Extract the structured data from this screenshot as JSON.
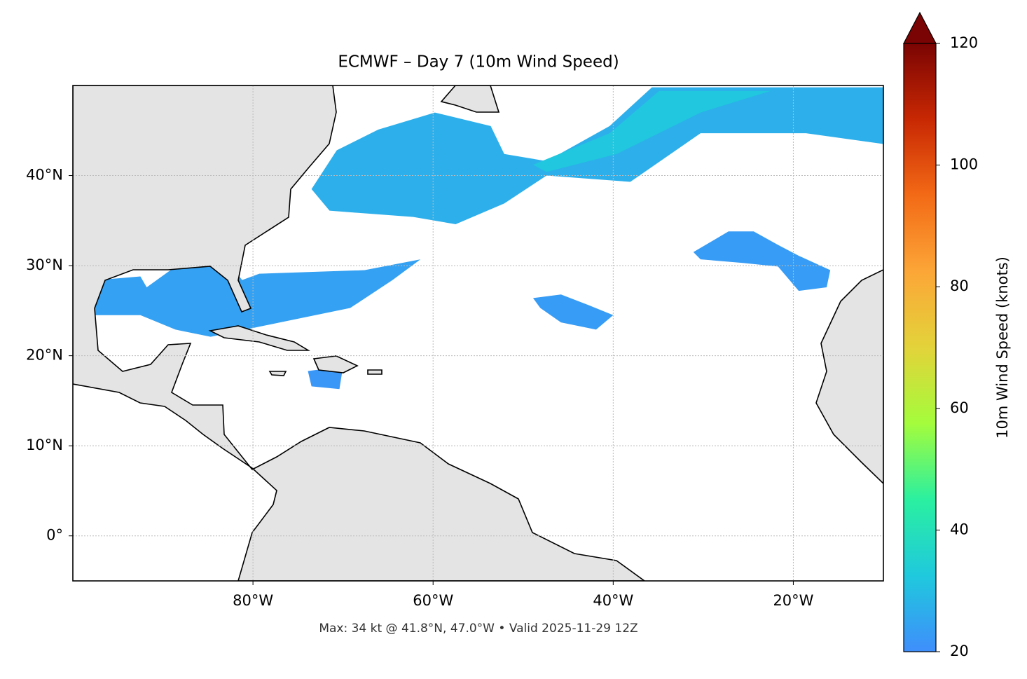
{
  "chart_data": {
    "type": "map",
    "title": "ECMWF – Day 7 (10m Wind Speed)",
    "footer": "Max: 34 kt @ 41.8°N, 47.0°W • Valid 2025-11-29 12Z",
    "colorbar_label": "10m Wind Speed (knots)",
    "xlim": [
      -100,
      -10
    ],
    "ylim": [
      -5,
      50
    ],
    "xticks": [
      {
        "value": -80,
        "label": "80°W"
      },
      {
        "value": -60,
        "label": "60°W"
      },
      {
        "value": -40,
        "label": "40°W"
      },
      {
        "value": -20,
        "label": "20°W"
      }
    ],
    "yticks": [
      {
        "value": 0,
        "label": "0°"
      },
      {
        "value": 10,
        "label": "10°N"
      },
      {
        "value": 20,
        "label": "20°N"
      },
      {
        "value": 30,
        "label": "30°N"
      },
      {
        "value": 40,
        "label": "40°N"
      }
    ],
    "grid": true,
    "clim": [
      20,
      120
    ],
    "cticks": [
      20,
      40,
      60,
      80,
      100,
      120
    ],
    "colormap": [
      "#3f8efc",
      "#1fc9dd",
      "#2af0a0",
      "#a4fc3c",
      "#e3d33a",
      "#fca637",
      "#f36a16",
      "#c82803",
      "#7a0403"
    ],
    "wind_regions": [
      {
        "value": 27,
        "coords": [
          [
            -73.5,
            38.5
          ],
          [
            -70.7,
            42.8
          ],
          [
            -66.1,
            45.1
          ],
          [
            -59.8,
            47.0
          ],
          [
            -53.6,
            45.5
          ],
          [
            -52.1,
            42.4
          ],
          [
            -47.4,
            41.6
          ],
          [
            -40.4,
            45.5
          ],
          [
            -35.7,
            49.8
          ],
          [
            -10.0,
            49.8
          ],
          [
            -10.0,
            43.5
          ],
          [
            -18.6,
            44.7
          ],
          [
            -30.3,
            44.7
          ],
          [
            -38.1,
            39.3
          ],
          [
            -47.4,
            40.0
          ],
          [
            -52.1,
            36.9
          ],
          [
            -57.5,
            34.6
          ],
          [
            -62.2,
            35.4
          ],
          [
            -71.5,
            36.1
          ]
        ]
      },
      {
        "value": 32,
        "coords": [
          [
            -48.9,
            41.2
          ],
          [
            -40.4,
            44.7
          ],
          [
            -34.9,
            49.4
          ],
          [
            -22.5,
            49.4
          ],
          [
            -30.3,
            47.0
          ],
          [
            -39.6,
            42.4
          ],
          [
            -47.4,
            40.4
          ]
        ]
      },
      {
        "value": 24,
        "coords": [
          [
            -97.6,
            24.5
          ],
          [
            -97.2,
            28.4
          ],
          [
            -92.5,
            28.8
          ],
          [
            -91.8,
            27.6
          ],
          [
            -88.6,
            29.9
          ],
          [
            -82.4,
            29.9
          ],
          [
            -81.2,
            28.4
          ],
          [
            -79.3,
            29.1
          ],
          [
            -67.6,
            29.5
          ],
          [
            -61.4,
            30.7
          ],
          [
            -64.5,
            28.4
          ],
          [
            -69.2,
            25.3
          ],
          [
            -77.0,
            23.7
          ],
          [
            -84.7,
            22.1
          ],
          [
            -88.6,
            22.9
          ],
          [
            -92.5,
            24.5
          ]
        ]
      },
      {
        "value": 23,
        "coords": [
          [
            -48.9,
            26.4
          ],
          [
            -45.8,
            26.8
          ],
          [
            -42.7,
            25.6
          ],
          [
            -40.0,
            24.5
          ],
          [
            -41.9,
            22.9
          ],
          [
            -45.8,
            23.7
          ],
          [
            -48.1,
            25.3
          ]
        ]
      },
      {
        "value": 23,
        "coords": [
          [
            -31.1,
            31.5
          ],
          [
            -27.2,
            33.8
          ],
          [
            -24.4,
            33.8
          ],
          [
            -21.7,
            32.3
          ],
          [
            -19.4,
            31.1
          ],
          [
            -15.9,
            29.5
          ],
          [
            -16.3,
            27.6
          ],
          [
            -19.4,
            27.2
          ],
          [
            -21.7,
            29.9
          ],
          [
            -25.6,
            30.3
          ],
          [
            -30.3,
            30.7
          ]
        ]
      },
      {
        "value": 22,
        "coords": [
          [
            -73.9,
            18.3
          ],
          [
            -70.0,
            18.8
          ],
          [
            -70.4,
            16.3
          ],
          [
            -73.5,
            16.6
          ]
        ]
      }
    ]
  }
}
